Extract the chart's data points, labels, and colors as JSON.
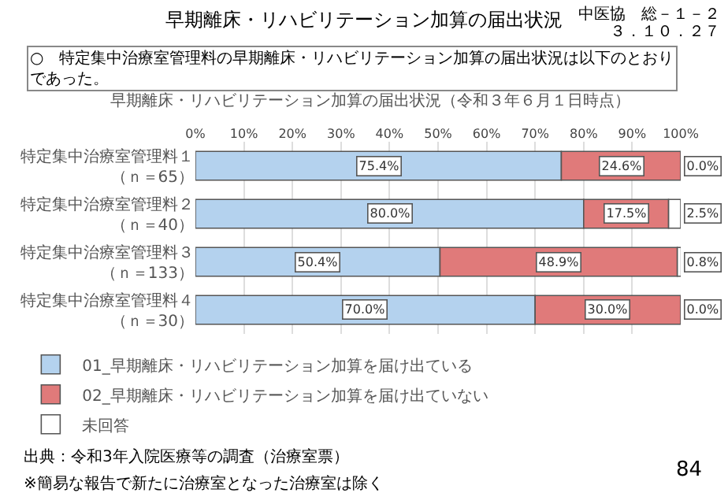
{
  "chart_data": {
    "type": "bar",
    "orientation": "horizontal",
    "stacked": true,
    "title": "早期離床・リハビリテーション加算の届出状況",
    "subtitle": "○　特定集中治療室管理料の早期離床・リハビリテーション加算の届出状況は以下のとおりであった。",
    "categories": [
      "特定集中治療室管理料１（ｎ＝65）",
      "特定集中治療室管理料２（ｎ＝40）",
      "特定集中治療室管理料３（ｎ＝133）",
      "特定集中治療室管理料４（ｎ＝30）"
    ],
    "series": [
      {
        "name": "01_早期離床・リハビリテーション加算を届け出ている",
        "color": "#b4d2ee",
        "values": [
          75.4,
          80.0,
          50.4,
          70.0
        ],
        "value_labels": [
          "75.4%",
          "80.0%",
          "50.4%",
          "70.0%"
        ]
      },
      {
        "name": "02_早期離床・リハビリテーション加算を届け出ていない",
        "color": "#e07a7a",
        "values": [
          24.6,
          17.5,
          48.9,
          30.0
        ],
        "value_labels": [
          "24.6%",
          "17.5%",
          "48.9%",
          "30.0%"
        ]
      },
      {
        "name": "未回答",
        "color": "#ffffff",
        "values": [
          0.0,
          2.5,
          0.8,
          0.0
        ],
        "value_labels": [
          "0.0%",
          "2.5%",
          "0.8%",
          "0.0%"
        ]
      }
    ],
    "xlim": [
      0,
      100
    ],
    "xticks": [
      {
        "value": 0,
        "label": "0%"
      },
      {
        "value": 10,
        "label": "10%"
      },
      {
        "value": 20,
        "label": "20%"
      },
      {
        "value": 30,
        "label": "30%"
      },
      {
        "value": 40,
        "label": "40%"
      },
      {
        "value": 50,
        "label": "50%"
      },
      {
        "value": 60,
        "label": "60%"
      },
      {
        "value": 70,
        "label": "70%"
      },
      {
        "value": 80,
        "label": "80%"
      },
      {
        "value": 90,
        "label": "90%"
      },
      {
        "value": 100,
        "label": "100%"
      }
    ],
    "grid": "x",
    "legend": "bottom",
    "annotations": [
      "早期離床・リハビリテーション加算の届出状況（令和３年６月１日時点）",
      "中医協　総－１－２",
      "３．１０．２７",
      "出典：令和3年入院医療等の調査（治療室票）",
      "※簡易な報告で新たに治療室となった治療室は除く",
      "84"
    ]
  }
}
